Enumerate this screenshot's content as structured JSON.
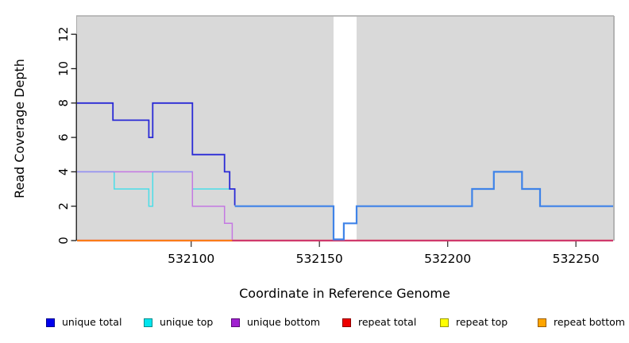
{
  "figure_bg": "#ffffff",
  "panel": {
    "bg_color": "#d9d9d9",
    "border_color": "#ababab",
    "axis_color": "#1a1a1a",
    "no_data_region_color": "#ffffff"
  },
  "chart_data": {
    "type": "line",
    "subtype": "step-coverage",
    "title": "",
    "xlabel": "Coordinate in Reference Genome",
    "ylabel": "Read Coverage Depth",
    "xlim": [
      532055.5,
      532264.5
    ],
    "ylim": [
      0,
      13.07
    ],
    "x_ticks": [
      532100,
      532150,
      532200,
      532250
    ],
    "y_ticks": [
      0,
      2,
      4,
      6,
      8,
      10,
      12
    ],
    "grid": false,
    "legend_position": "bottom",
    "no_data_region": [
      532155.5,
      532164.5
    ],
    "series": [
      {
        "name": "unique total",
        "color": "#2a2ad6",
        "steps": [
          [
            532055.5,
            8
          ],
          [
            532069.5,
            7
          ],
          [
            532083.5,
            6
          ],
          [
            532085,
            8
          ],
          [
            532100.5,
            5
          ],
          [
            532113,
            4
          ],
          [
            532115,
            3
          ],
          [
            532117,
            2
          ],
          [
            532155.5,
            0
          ],
          [
            532159.5,
            1
          ],
          [
            532164.5,
            2
          ],
          [
            532209.5,
            3
          ],
          [
            532218,
            4
          ],
          [
            532229,
            3
          ],
          [
            532236,
            2
          ]
        ],
        "x_end": 532264.5
      },
      {
        "name": "unique top",
        "color": "#4adee8",
        "steps": [
          [
            532055.5,
            4
          ],
          [
            532070,
            3
          ],
          [
            532083.5,
            2
          ],
          [
            532085,
            4
          ],
          [
            532100.5,
            3
          ],
          [
            532115,
            2
          ],
          [
            532155.5,
            0
          ],
          [
            532159.5,
            1
          ],
          [
            532164.5,
            2
          ],
          [
            532209.5,
            3
          ],
          [
            532218,
            4
          ],
          [
            532229,
            3
          ],
          [
            532236,
            2
          ]
        ],
        "x_end": 532264.5
      },
      {
        "name": "unique bottom",
        "color": "#c478e2",
        "steps": [
          [
            532055.5,
            4
          ],
          [
            532100.5,
            2
          ],
          [
            532113,
            1
          ],
          [
            532116,
            0
          ]
        ],
        "x_end": 532264.5
      },
      {
        "name": "repeat total",
        "color": "#e81212",
        "steps": [
          [
            532055.5,
            0
          ]
        ],
        "x_end": 532264.5
      },
      {
        "name": "repeat top",
        "color": "#ffe400",
        "steps": [
          [
            532055.5,
            0
          ]
        ],
        "x_end": 532264.5
      },
      {
        "name": "repeat bottom",
        "color": "#ff9f1a",
        "steps": [
          [
            532055.5,
            0
          ]
        ],
        "x_end": 532264.5
      }
    ],
    "draw_paths": [
      {
        "name": "repeat-total-line",
        "color": "#e81212",
        "width": 2.2,
        "points": [
          [
            532055.5,
            0
          ],
          [
            532264.5,
            0
          ]
        ]
      },
      {
        "name": "repeat-bottom-line",
        "color": "#ff9f1a",
        "width": 1.6,
        "points": [
          [
            532055.5,
            0
          ],
          [
            532116,
            0
          ]
        ]
      },
      {
        "name": "repeat-unique-overlap-line",
        "color": "#ce3a6e",
        "width": 1.9,
        "points": [
          [
            532116,
            0
          ],
          [
            532264.5,
            0
          ]
        ]
      },
      {
        "name": "unique-top-line-a",
        "color": "#4adee8",
        "width": 1.5,
        "points": [
          [
            532070,
            4
          ],
          [
            532070,
            3
          ],
          [
            532083.5,
            3
          ],
          [
            532083.5,
            2
          ],
          [
            532085,
            2
          ],
          [
            532085,
            4
          ]
        ]
      },
      {
        "name": "unique-top-line-b",
        "color": "#4adee8",
        "width": 1.5,
        "points": [
          [
            532100.5,
            3
          ],
          [
            532115,
            3
          ]
        ]
      },
      {
        "name": "unique-bottom-line",
        "color": "#c478e2",
        "width": 1.5,
        "points": [
          [
            532055.5,
            4
          ],
          [
            532100.5,
            4
          ],
          [
            532100.5,
            2
          ],
          [
            532113,
            2
          ],
          [
            532113,
            1
          ],
          [
            532116,
            1
          ],
          [
            532116,
            0.06
          ]
        ]
      },
      {
        "name": "unique-overlap-line-a",
        "color": "#8f93f2",
        "width": 1.5,
        "points": [
          [
            532055.5,
            4
          ],
          [
            532070,
            4
          ]
        ]
      },
      {
        "name": "unique-overlap-line-b",
        "color": "#8f93f2",
        "width": 1.5,
        "points": [
          [
            532085,
            4
          ],
          [
            532100.5,
            4
          ]
        ]
      },
      {
        "name": "unique-total-line-left",
        "color": "#2a2ad6",
        "width": 1.8,
        "points": [
          [
            532055.5,
            8
          ],
          [
            532069.5,
            8
          ],
          [
            532069.5,
            7
          ],
          [
            532083.5,
            7
          ],
          [
            532083.5,
            6
          ],
          [
            532085,
            6
          ],
          [
            532085,
            8
          ],
          [
            532100.5,
            8
          ],
          [
            532100.5,
            5
          ],
          [
            532113,
            5
          ],
          [
            532113,
            4
          ],
          [
            532115,
            4
          ],
          [
            532115,
            3
          ],
          [
            532117,
            3
          ],
          [
            532117,
            2.05
          ]
        ]
      },
      {
        "name": "unique-total-line-right",
        "color": "#3f83e8",
        "width": 2.2,
        "points": [
          [
            532117,
            2
          ],
          [
            532155.5,
            2
          ],
          [
            532155.5,
            0.07
          ],
          [
            532159.5,
            0.07
          ],
          [
            532159.5,
            1
          ],
          [
            532164.5,
            1
          ],
          [
            532164.5,
            2
          ],
          [
            532209.5,
            2
          ],
          [
            532209.5,
            3
          ],
          [
            532218,
            3
          ],
          [
            532218,
            4
          ],
          [
            532229,
            4
          ],
          [
            532229,
            3
          ],
          [
            532236,
            3
          ],
          [
            532236,
            2
          ],
          [
            532264.5,
            2
          ]
        ]
      }
    ]
  },
  "legend": {
    "items": [
      {
        "label": "unique total",
        "color": "#0000ee",
        "border": "#00008b"
      },
      {
        "label": "unique top",
        "color": "#00e5ee",
        "border": "#008b8b"
      },
      {
        "label": "unique bottom",
        "color": "#a020d0",
        "border": "#5a0a78"
      },
      {
        "label": "repeat total",
        "color": "#ee0000",
        "border": "#8b0000"
      },
      {
        "label": "repeat top",
        "color": "#ffff00",
        "border": "#999900"
      },
      {
        "label": "repeat bottom",
        "color": "#ffa500",
        "border": "#995c00"
      }
    ]
  }
}
